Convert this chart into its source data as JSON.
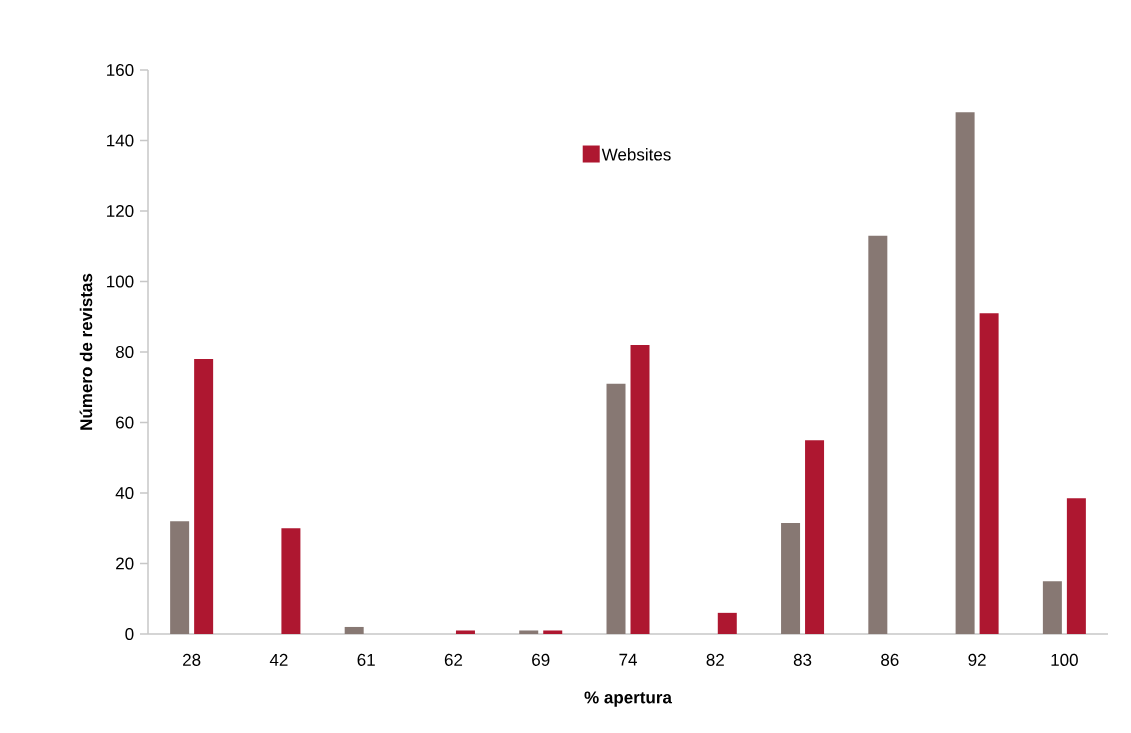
{
  "chart_data": {
    "type": "bar",
    "xlabel": "% apertura",
    "ylabel": "Número de revistas",
    "categories": [
      "28",
      "42",
      "61",
      "62",
      "69",
      "74",
      "82",
      "83",
      "86",
      "92",
      "100"
    ],
    "series": [
      {
        "color": "#877873",
        "values": [
          32,
          0,
          2,
          0,
          1,
          71,
          0,
          31.5,
          113,
          148,
          15
        ]
      },
      {
        "name": "Websites",
        "color": "#ae1730",
        "values": [
          78,
          30,
          0,
          1,
          1,
          82,
          6,
          55,
          0,
          91,
          38.5
        ]
      }
    ],
    "ylim": [
      0,
      160
    ],
    "yticks": [
      0,
      20,
      40,
      60,
      80,
      100,
      120,
      140,
      160
    ],
    "grid": false,
    "legend": "top"
  }
}
